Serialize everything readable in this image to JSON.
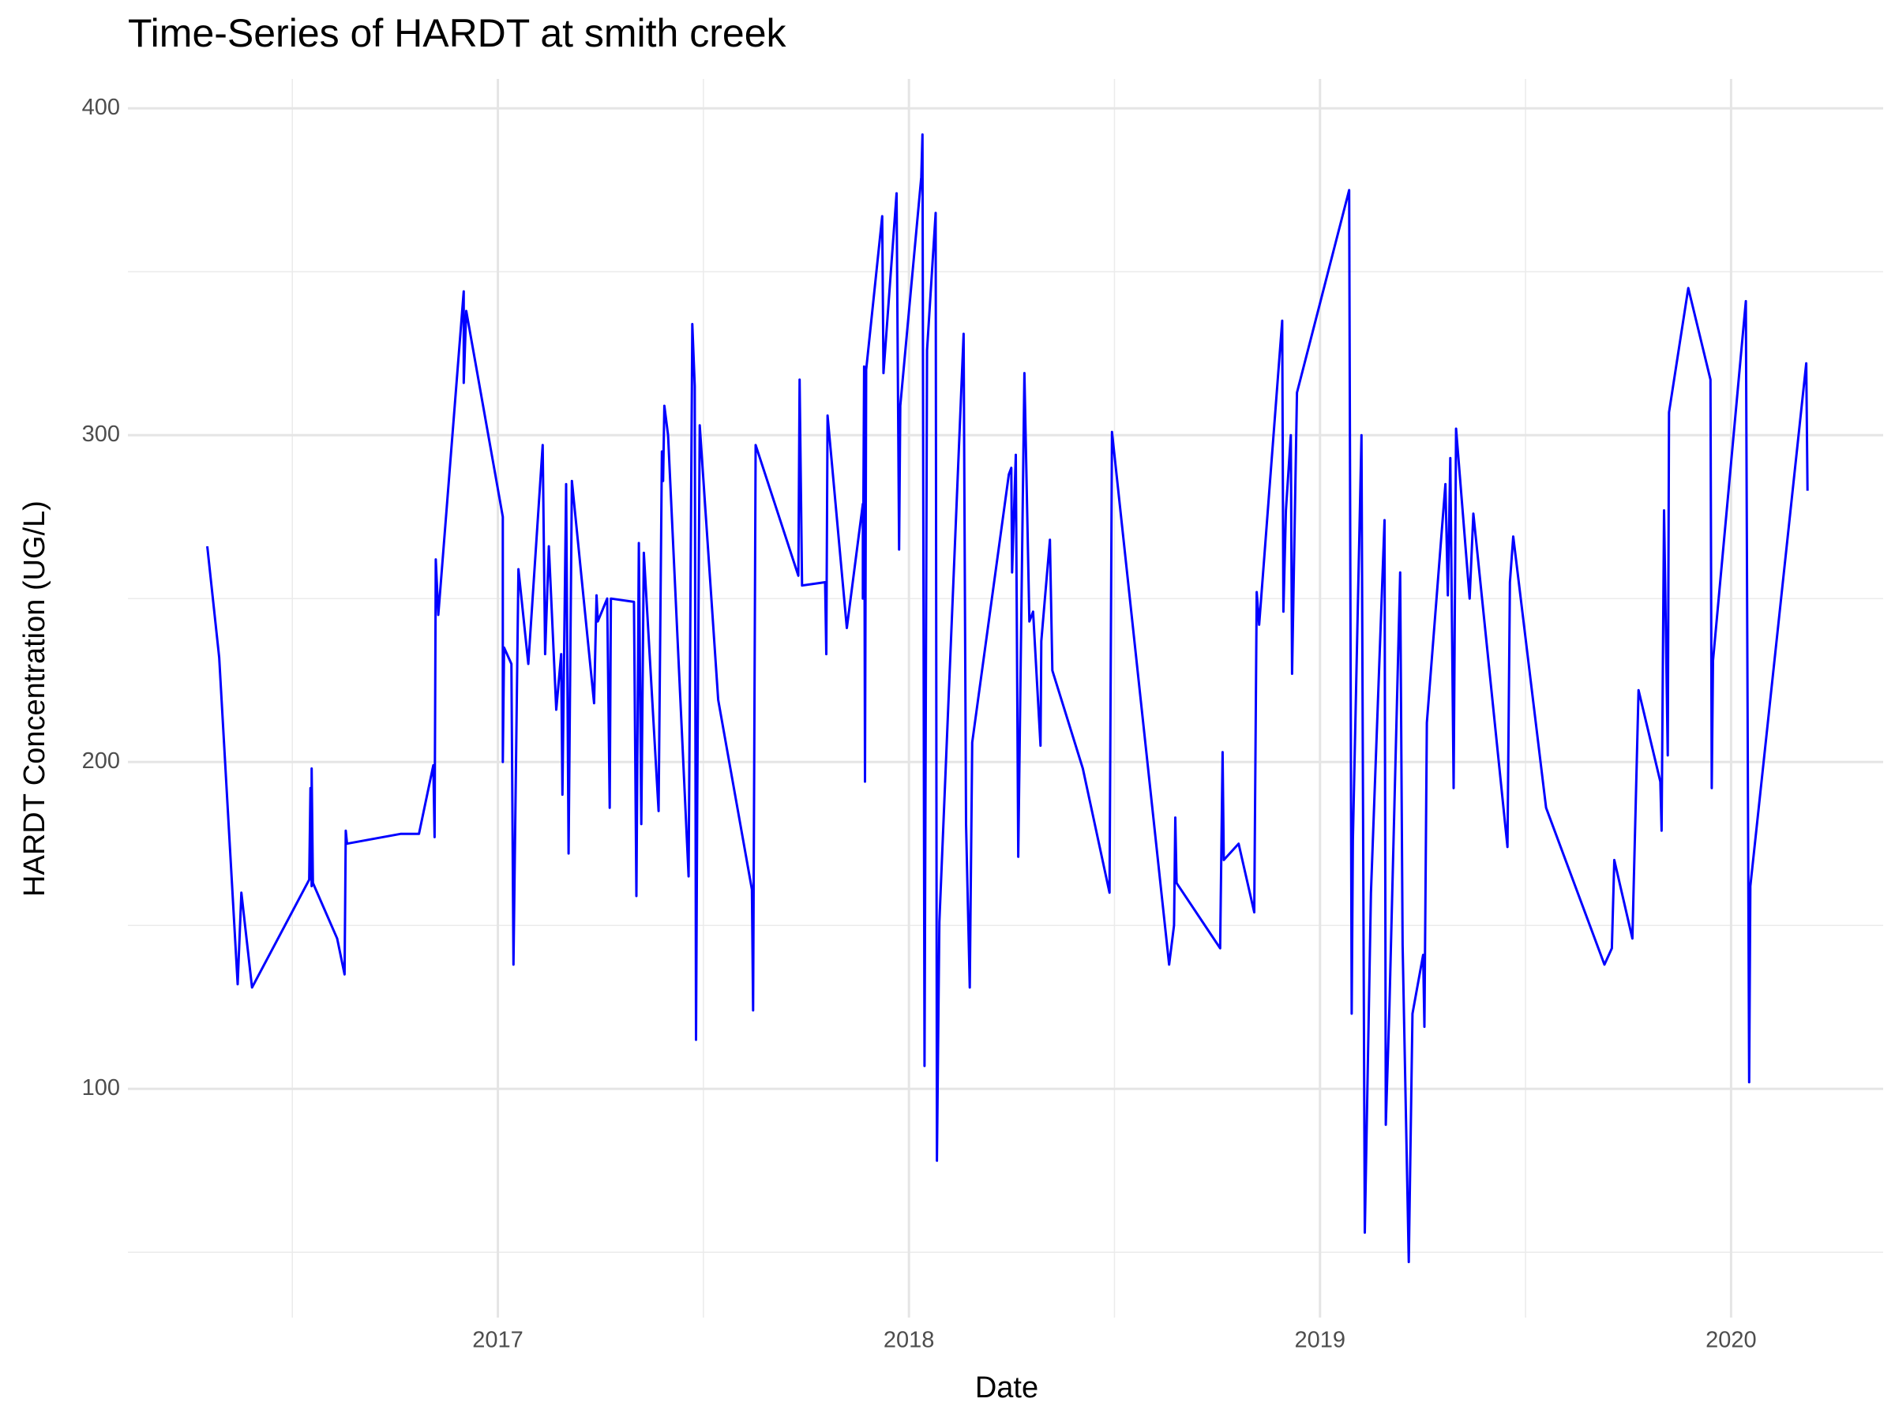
{
  "chart_data": {
    "type": "line",
    "title": "Time-Series of HARDT at smith creek",
    "x_label": "Date",
    "y_label": "HARDT Concentration (UG/L)",
    "color": "#0000ff",
    "grid": true,
    "xlim": [
      2016.1,
      2020.37
    ],
    "xticks": [
      2017,
      2018,
      2019,
      2020
    ],
    "minor_xticks": [
      2016.5,
      2017.5,
      2018.5,
      2019.5
    ],
    "ylim": [
      30,
      409
    ],
    "yticks": [
      100,
      200,
      300,
      400
    ],
    "minor_yticks": [
      50,
      150,
      250,
      350
    ],
    "x": [
      2016.293,
      2016.322,
      2016.367,
      2016.376,
      2016.402,
      2016.541,
      2016.544,
      2016.547,
      2016.547,
      2016.55,
      2016.609,
      2016.627,
      2016.63,
      2016.633,
      2016.763,
      2016.808,
      2016.843,
      2016.846,
      2016.849,
      2016.855,
      2016.917,
      2016.917,
      2016.923,
      2017.012,
      2017.012,
      2017.015,
      2017.033,
      2017.038,
      2017.05,
      2017.074,
      2017.109,
      2017.115,
      2017.124,
      2017.142,
      2017.154,
      2017.157,
      2017.166,
      2017.172,
      2017.18,
      2017.234,
      2017.24,
      2017.243,
      2017.266,
      2017.272,
      2017.275,
      2017.331,
      2017.337,
      2017.343,
      2017.349,
      2017.355,
      2017.391,
      2017.399,
      2017.402,
      2017.405,
      2017.414,
      2017.464,
      2017.473,
      2017.479,
      2017.482,
      2017.485,
      2017.491,
      2017.536,
      2017.618,
      2017.621,
      2017.627,
      2017.731,
      2017.734,
      2017.74,
      2017.796,
      2017.799,
      2017.802,
      2017.849,
      2017.888,
      2017.888,
      2017.891,
      2017.893,
      2017.896,
      2017.935,
      2017.938,
      2017.97,
      2017.976,
      2017.979,
      2018.03,
      2018.033,
      2018.038,
      2018.044,
      2018.065,
      2018.068,
      2018.074,
      2018.133,
      2018.139,
      2018.148,
      2018.154,
      2018.243,
      2018.249,
      2018.251,
      2018.26,
      2018.266,
      2018.281,
      2018.293,
      2018.302,
      2018.32,
      2018.322,
      2018.343,
      2018.349,
      2018.423,
      2018.488,
      2018.494,
      2018.633,
      2018.645,
      2018.648,
      2018.651,
      2018.757,
      2018.763,
      2018.766,
      2018.802,
      2018.84,
      2018.846,
      2018.852,
      2018.908,
      2018.911,
      2018.917,
      2018.929,
      2018.932,
      2018.944,
      2019.071,
      2019.077,
      2019.08,
      2019.101,
      2019.109,
      2019.124,
      2019.157,
      2019.16,
      2019.169,
      2019.195,
      2019.201,
      2019.216,
      2019.225,
      2019.251,
      2019.254,
      2019.26,
      2019.305,
      2019.311,
      2019.317,
      2019.325,
      2019.331,
      2019.364,
      2019.373,
      2019.456,
      2019.462,
      2019.47,
      2019.55,
      2019.692,
      2019.71,
      2019.716,
      2019.76,
      2019.775,
      2019.828,
      2019.831,
      2019.837,
      2019.846,
      2019.849,
      2019.896,
      2019.95,
      2019.953,
      2019.956,
      2020.036,
      2020.044,
      2020.047,
      2020.183,
      2020.186
    ],
    "values": [
      266,
      232,
      132,
      160,
      131,
      164,
      192,
      162,
      198,
      163,
      146,
      135,
      179,
      175,
      178,
      178,
      199,
      177,
      262,
      245,
      344,
      316,
      338,
      275,
      200,
      235,
      230,
      138,
      259,
      230,
      297,
      233,
      266,
      216,
      233,
      190,
      285,
      172,
      286,
      218,
      251,
      243,
      250,
      186,
      250,
      249,
      159,
      267,
      181,
      264,
      185,
      295,
      286,
      309,
      300,
      165,
      334,
      315,
      115,
      186,
      303,
      219,
      161,
      124,
      297,
      257,
      317,
      254,
      255,
      233,
      306,
      241,
      279,
      250,
      321,
      194,
      320,
      367,
      319,
      374,
      265,
      309,
      379,
      392,
      107,
      326,
      368,
      78,
      151,
      331,
      181,
      131,
      206,
      288,
      290,
      258,
      294,
      171,
      319,
      243,
      246,
      205,
      237,
      268,
      228,
      198,
      160,
      301,
      138,
      150,
      183,
      163,
      143,
      203,
      170,
      175,
      154,
      252,
      242,
      335,
      246,
      277,
      300,
      227,
      313,
      375,
      123,
      176,
      300,
      56,
      160,
      274,
      89,
      125,
      258,
      144,
      47,
      123,
      141,
      119,
      212,
      285,
      251,
      293,
      192,
      302,
      250,
      276,
      174,
      255,
      269,
      186,
      138,
      143,
      170,
      146,
      222,
      194,
      179,
      277,
      202,
      307,
      345,
      317,
      192,
      231,
      341,
      102,
      162,
      322,
      283
    ]
  }
}
